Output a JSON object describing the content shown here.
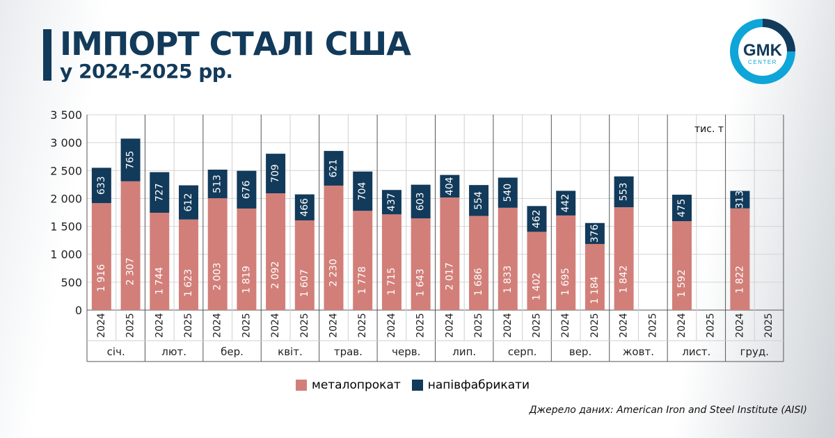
{
  "header": {
    "title": "ІМПОРТ СТАЛІ США",
    "subtitle": "у 2024-2025 рр."
  },
  "logo": {
    "main": "GMK",
    "sub": "CENTER"
  },
  "colors": {
    "accent": "#123a5a",
    "metal": "#d27f79",
    "semi": "#123a5a",
    "logo_ring": "#0ea5d8"
  },
  "source": "Джерело даних: American Iron and Steel Institute (AISI)",
  "chart_data": {
    "type": "bar",
    "stacked": true,
    "unit_label": "тис. т",
    "ylim": [
      0,
      3500
    ],
    "yticks": [
      {
        "value": 0,
        "label": "0"
      },
      {
        "value": 500,
        "label": "500"
      },
      {
        "value": 1000,
        "label": "1 000"
      },
      {
        "value": 1500,
        "label": "1 500"
      },
      {
        "value": 2000,
        "label": "2 000"
      },
      {
        "value": 2500,
        "label": "2 500"
      },
      {
        "value": 3000,
        "label": "3 000"
      },
      {
        "value": 3500,
        "label": "3 500"
      }
    ],
    "months": [
      "січ.",
      "лют.",
      "бер.",
      "квіт.",
      "трав.",
      "черв.",
      "лип.",
      "серп.",
      "вер.",
      "жовт.",
      "лист.",
      "груд."
    ],
    "years": [
      "2024",
      "2025"
    ],
    "grid": true,
    "legend_position": "bottom",
    "series": [
      {
        "name": "металопрокат",
        "values": [
          1916,
          2307,
          1744,
          1623,
          2003,
          1819,
          2092,
          1607,
          2230,
          1778,
          1715,
          1643,
          2017,
          1686,
          1833,
          1402,
          1695,
          1184,
          1842,
          null,
          1592,
          null,
          1822,
          null
        ],
        "labels": [
          "1 916",
          "2 307",
          "1 744",
          "1 623",
          "2 003",
          "1 819",
          "2 092",
          "1 607",
          "2 230",
          "1 778",
          "1 715",
          "1 643",
          "2 017",
          "1 686",
          "1 833",
          "1 402",
          "1 695",
          "1 184",
          "1 842",
          "",
          "1 592",
          "",
          "1 822",
          ""
        ]
      },
      {
        "name": "напівфабрикати",
        "values": [
          633,
          765,
          727,
          612,
          513,
          676,
          709,
          466,
          621,
          704,
          437,
          603,
          404,
          554,
          540,
          462,
          442,
          376,
          553,
          null,
          475,
          null,
          313,
          null
        ],
        "labels": [
          "633",
          "765",
          "727",
          "612",
          "513",
          "676",
          "709",
          "466",
          "621",
          "704",
          "437",
          "603",
          "404",
          "554",
          "540",
          "462",
          "442",
          "376",
          "553",
          "",
          "475",
          "",
          "313",
          ""
        ]
      }
    ]
  }
}
